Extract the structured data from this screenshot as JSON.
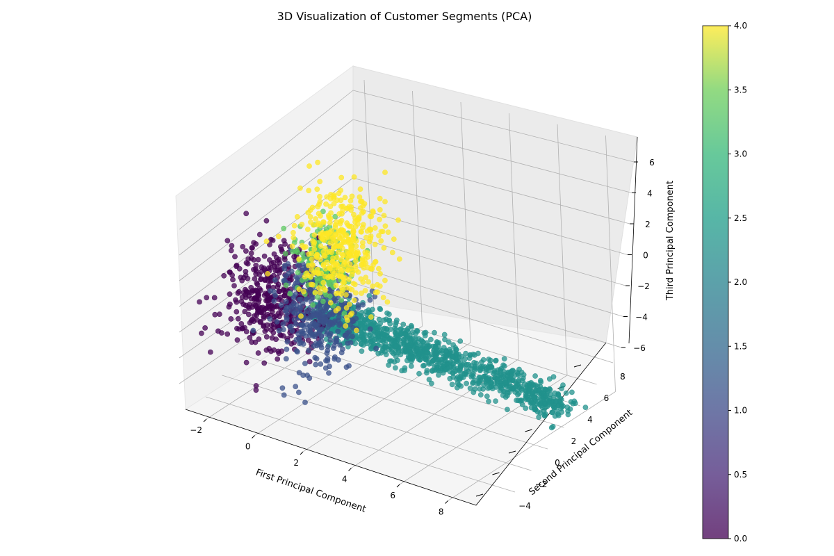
{
  "chart_data": {
    "type": "scatter",
    "projection": "3d",
    "title": "3D Visualization of Customer Segments (PCA)",
    "xlabel": "First Principal Component",
    "ylabel": "Second Principal Component",
    "zlabel": "Third Principal Component",
    "xticks": [
      "−2",
      "0",
      "2",
      "4",
      "6",
      "8"
    ],
    "yticks": [
      "−4",
      "−2",
      "0",
      "2",
      "4",
      "6",
      "8"
    ],
    "zticks": [
      "−6",
      "−4",
      "−2",
      "0",
      "2",
      "4",
      "6"
    ],
    "colorbar": {
      "colormap": "viridis",
      "range": [
        0.0,
        4.0
      ],
      "ticks": [
        "0.0",
        "0.5",
        "1.0",
        "1.5",
        "2.0",
        "2.5",
        "3.0",
        "3.5",
        "4.0"
      ]
    },
    "grid": true,
    "point_alpha": 0.75,
    "clusters": [
      {
        "label_value": 0,
        "color": "#440154",
        "center_x": -2.0,
        "center_y": -2.0,
        "center_z": 0.5,
        "spread": [
          0.9,
          1.2,
          1.6
        ]
      },
      {
        "label_value": 1,
        "color": "#3b528b",
        "center_x": -0.5,
        "center_y": -0.5,
        "center_z": -0.5,
        "spread": [
          0.8,
          1.0,
          1.6
        ]
      },
      {
        "label_value": 2,
        "color": "#21918c",
        "center_x": 3.5,
        "center_y": 1.0,
        "center_z": -1.0,
        "spread": [
          2.2,
          0.8,
          0.9
        ]
      },
      {
        "label_value": 3,
        "color": "#5ec962",
        "center_x": -0.5,
        "center_y": 0.5,
        "center_z": 2.0,
        "spread": [
          0.7,
          0.9,
          1.2
        ]
      },
      {
        "label_value": 4,
        "color": "#fde725",
        "center_x": 0.0,
        "center_y": 1.0,
        "center_z": 3.0,
        "spread": [
          0.8,
          1.2,
          1.6
        ]
      }
    ]
  }
}
